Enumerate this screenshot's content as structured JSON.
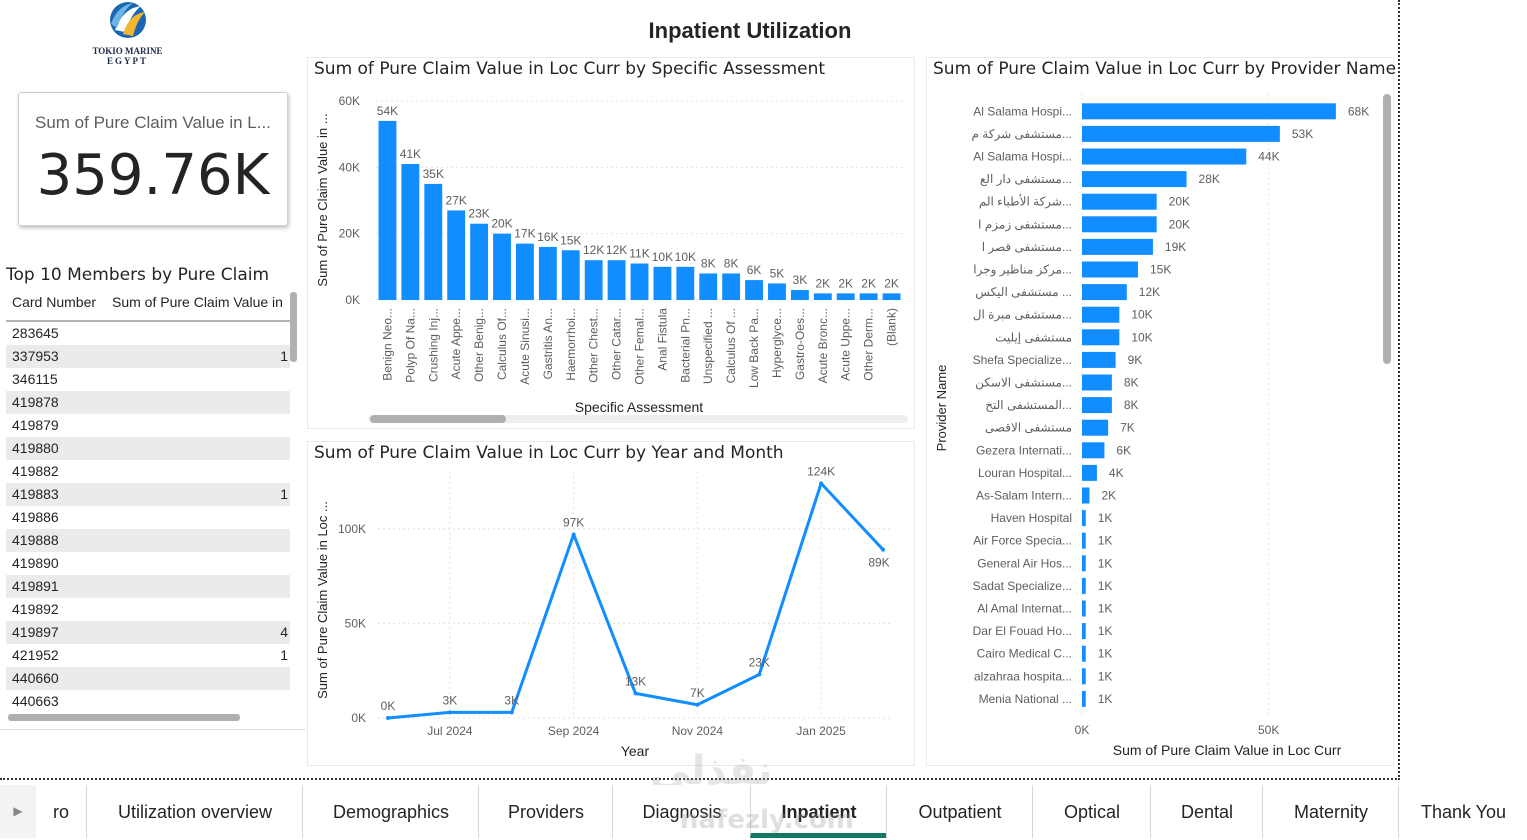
{
  "page_title": "Inpatient Utilization",
  "logo": {
    "line1": "TOKIO MARINE",
    "line2": "EGYPT"
  },
  "kpi": {
    "label": "Sum of Pure Claim Value in L...",
    "value": "359.76K"
  },
  "table": {
    "title": "Top 10 Members by Pure Claim",
    "columns": [
      "Card Number",
      "Sum of Pure Claim Value in"
    ],
    "rows": [
      {
        "card": "283645",
        "value": ""
      },
      {
        "card": "337953",
        "value": "1"
      },
      {
        "card": "346115",
        "value": ""
      },
      {
        "card": "419878",
        "value": ""
      },
      {
        "card": "419879",
        "value": ""
      },
      {
        "card": "419880",
        "value": ""
      },
      {
        "card": "419882",
        "value": ""
      },
      {
        "card": "419883",
        "value": "1"
      },
      {
        "card": "419886",
        "value": ""
      },
      {
        "card": "419888",
        "value": ""
      },
      {
        "card": "419890",
        "value": ""
      },
      {
        "card": "419891",
        "value": ""
      },
      {
        "card": "419892",
        "value": ""
      },
      {
        "card": "419897",
        "value": "4"
      },
      {
        "card": "421952",
        "value": "1"
      },
      {
        "card": "440660",
        "value": ""
      },
      {
        "card": "440663",
        "value": ""
      }
    ]
  },
  "chart_data": [
    {
      "type": "bar",
      "title": "Sum of Pure Claim Value in Loc Curr by Specific Assessment",
      "xlabel": "Specific Assessment",
      "ylabel": "Sum of Pure Claim Value in ...",
      "ylim": [
        0,
        60000
      ],
      "yticks": [
        "0K",
        "20K",
        "40K",
        "60K"
      ],
      "categories": [
        "Benign Neo...",
        "Polyp Of Na...",
        "Crushing Inj...",
        "Acute Appe...",
        "Other Benig...",
        "Calculus Of...",
        "Acute Sinusi...",
        "Gastritis An...",
        "Haemorrhoi...",
        "Other Chest...",
        "Other Catar...",
        "Other Femal...",
        "Anal Fistula",
        "Bacterial Pn...",
        "Unspecified ...",
        "Calculus Of ...",
        "Low Back Pa...",
        "Hyperglyce...",
        "Gastro-Oes...",
        "Acute Bronc...",
        "Acute Uppe...",
        "Other Derm...",
        "(Blank)"
      ],
      "values": [
        54000,
        41000,
        35000,
        27000,
        23000,
        20000,
        17000,
        16000,
        15000,
        12000,
        12000,
        11000,
        10000,
        10000,
        8000,
        8000,
        6000,
        5000,
        3000,
        2000,
        2000,
        2000,
        2000
      ],
      "labels": [
        "54K",
        "41K",
        "35K",
        "27K",
        "23K",
        "20K",
        "17K",
        "16K",
        "15K",
        "12K",
        "12K",
        "11K",
        "10K",
        "10K",
        "8K",
        "8K",
        "6K",
        "5K",
        "3K",
        "2K",
        "2K",
        "2K",
        "2K"
      ],
      "color": "#118DFF",
      "grid": true
    },
    {
      "type": "line",
      "title": "Sum of Pure Claim Value in Loc Curr by Year and Month",
      "xlabel": "Year",
      "ylabel": "Sum of Pure Claim Value in Loc ...",
      "ylim": [
        0,
        130000
      ],
      "yticks": [
        "0K",
        "50K",
        "100K"
      ],
      "x": [
        "2024-06",
        "2024-07",
        "2024-08",
        "2024-09",
        "2024-10",
        "2024-11",
        "2024-12",
        "2025-01",
        "2025-02"
      ],
      "xticks": [
        "Jul 2024",
        "Sep 2024",
        "Nov 2024",
        "Jan 2025"
      ],
      "values": [
        0,
        3000,
        3000,
        97000,
        13000,
        7000,
        23000,
        124000,
        89000
      ],
      "labels": [
        "0K",
        "3K",
        "3K",
        "97K",
        "13K",
        "7K",
        "23K",
        "124K",
        "89K"
      ],
      "color": "#118DFF",
      "grid": true
    },
    {
      "type": "bar",
      "orientation": "horizontal",
      "title": "Sum of Pure Claim Value in Loc Curr by Provider Name",
      "xlabel": "Sum of Pure Claim Value in Loc Curr",
      "ylabel": "Provider Name",
      "xlim": [
        0,
        75000
      ],
      "xticks": [
        "0K",
        "50K"
      ],
      "categories": [
        "Al Salama Hospi...",
        "مستشفى شركة م...",
        "Al Salama Hospi...",
        "مستشفى دار الع...",
        "شركة الأطباء الم...",
        "مستشفى زمزم ا...",
        "مستشفى قصر ا...",
        "مركز مناظير وجرا...",
        "مستشفى اليكس ...",
        "مستشفى مبرة ال...",
        "مستشفى إيليت",
        "Shefa Specialize...",
        "مستشفى الاسكن...",
        "المستشفى التخ...",
        "مستشفى الاقصى",
        "Gezera Internati...",
        "Louran Hospital...",
        "As-Salam Intern...",
        "Haven Hospital",
        "Air Force Specia...",
        "General Air Hos...",
        "Sadat Specialize...",
        "Al Amal Internat...",
        "Dar El Fouad Ho...",
        "Cairo Medical C...",
        "alzahraa hospita...",
        "Menia National ..."
      ],
      "values": [
        68000,
        53000,
        44000,
        28000,
        20000,
        20000,
        19000,
        15000,
        12000,
        10000,
        10000,
        9000,
        8000,
        8000,
        7000,
        6000,
        4000,
        2000,
        1000,
        1000,
        1000,
        1000,
        1000,
        1000,
        1000,
        1000,
        1000
      ],
      "labels": [
        "68K",
        "53K",
        "44K",
        "28K",
        "20K",
        "20K",
        "19K",
        "15K",
        "12K",
        "10K",
        "10K",
        "9K",
        "8K",
        "8K",
        "7K",
        "6K",
        "4K",
        "2K",
        "1K",
        "1K",
        "1K",
        "1K",
        "1K",
        "1K",
        "1K",
        "1K",
        "1K"
      ],
      "color": "#118DFF",
      "grid": true
    }
  ],
  "tabs": [
    {
      "label": "ro",
      "active": false
    },
    {
      "label": "Utilization overview",
      "active": false
    },
    {
      "label": "Demographics",
      "active": false
    },
    {
      "label": "Providers",
      "active": false
    },
    {
      "label": "Diagnosis",
      "active": false
    },
    {
      "label": "Inpatient",
      "active": true
    },
    {
      "label": "Outpatient",
      "active": false
    },
    {
      "label": "Optical",
      "active": false
    },
    {
      "label": "Dental",
      "active": false
    },
    {
      "label": "Maternity",
      "active": false
    },
    {
      "label": "Thank You",
      "active": false
    }
  ],
  "watermark": {
    "arabic": "نفذلي",
    "latin": "nafezly.com"
  },
  "icons": {
    "logo": "tokio-marine-logo-icon",
    "nav": "chevron-right-icon"
  }
}
